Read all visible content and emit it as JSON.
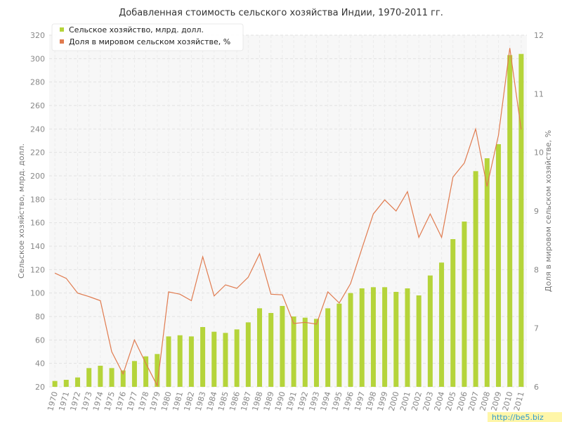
{
  "chart_data": {
    "type": "bar",
    "title": "Добавленная стоимость сельского хозяйства Индии, 1970-2011 гг.",
    "xlabel": "",
    "ylabel": "Сельское хозяйство, млрд. долл.",
    "ylabel_right": "Доля в мировом сельском хозяйстве, %",
    "categories": [
      "1970",
      "1971",
      "1972",
      "1973",
      "1974",
      "1975",
      "1976",
      "1977",
      "1978",
      "1979",
      "1980",
      "1981",
      "1982",
      "1983",
      "1984",
      "1985",
      "1986",
      "1987",
      "1988",
      "1989",
      "1990",
      "1991",
      "1992",
      "1993",
      "1994",
      "1995",
      "1996",
      "1997",
      "1998",
      "1999",
      "2000",
      "2001",
      "2002",
      "2003",
      "2004",
      "2005",
      "2006",
      "2007",
      "2008",
      "2009",
      "2010",
      "2011"
    ],
    "ylim": [
      20,
      320
    ],
    "ylim_right": [
      6,
      12
    ],
    "yticks": [
      20,
      40,
      60,
      80,
      100,
      120,
      140,
      160,
      180,
      200,
      220,
      240,
      260,
      280,
      300,
      320
    ],
    "yticks_right": [
      6,
      7,
      8,
      9,
      10,
      11,
      12
    ],
    "grid": true,
    "legend_position": "top-left",
    "series": [
      {
        "name": "Сельское хозяйство, млрд. долл.",
        "type": "bar",
        "axis": "left",
        "color": "#b5d43a",
        "values": [
          25,
          26,
          28,
          36,
          38,
          36,
          34,
          42,
          46,
          48,
          63,
          64,
          63,
          71,
          67,
          66,
          69,
          75,
          87,
          83,
          89,
          80,
          79,
          78,
          87,
          91,
          100,
          104,
          105,
          105,
          101,
          104,
          98,
          115,
          126,
          146,
          161,
          204,
          215,
          227,
          303,
          304
        ]
      },
      {
        "name": "Доля в мировом сельском хозяйстве, %",
        "type": "line",
        "axis": "right",
        "color": "#e07b4f",
        "values": [
          7.94,
          7.85,
          7.6,
          7.54,
          7.47,
          6.6,
          6.22,
          6.8,
          6.4,
          6.02,
          7.62,
          7.58,
          7.47,
          8.22,
          7.55,
          7.74,
          7.68,
          7.87,
          8.27,
          7.58,
          7.57,
          7.08,
          7.1,
          7.07,
          7.62,
          7.43,
          7.76,
          8.36,
          8.95,
          9.19,
          9.0,
          9.33,
          8.55,
          8.95,
          8.55,
          9.58,
          9.82,
          10.4,
          9.42,
          10.29,
          11.78,
          10.39
        ]
      }
    ]
  },
  "watermark": "http://be5.biz"
}
